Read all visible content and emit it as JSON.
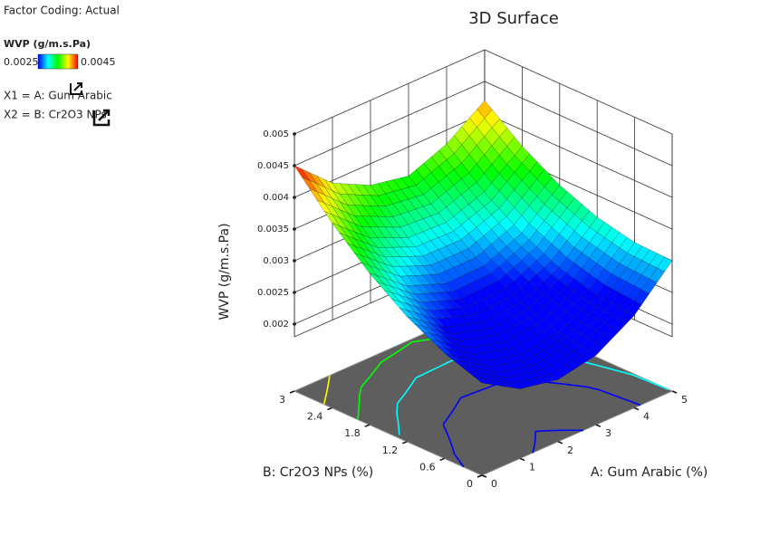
{
  "chart_data": {
    "type": "surface3d",
    "title": "3D Surface",
    "xlabel": "A: Gum Arabic (%)",
    "ylabel": "B: Cr2O3 NPs (%)",
    "zlabel": "WVP  (g/m.s.Pa)",
    "x": [
      0,
      1,
      2,
      3,
      4,
      5
    ],
    "y": [
      0,
      0.6,
      1.2,
      1.8,
      2.4,
      3
    ],
    "z": [
      [
        0.0024,
        0.00204,
        0.00192,
        0.00204,
        0.0024,
        0.003
      ],
      [
        0.002604,
        0.002208,
        0.002052,
        0.002136,
        0.00246,
        0.003024
      ],
      [
        0.002916,
        0.002484,
        0.002292,
        0.00234,
        0.002628,
        0.003156
      ],
      [
        0.003336,
        0.002868,
        0.00264,
        0.002652,
        0.002904,
        0.003396
      ],
      [
        0.003864,
        0.00336,
        0.003096,
        0.003072,
        0.003288,
        0.003744
      ],
      [
        0.0045,
        0.00396,
        0.00366,
        0.00354,
        0.00378,
        0.0042
      ]
    ],
    "xlim": [
      0,
      5
    ],
    "ylim": [
      0,
      3
    ],
    "zlim": [
      0.0018,
      0.005
    ],
    "xticks": [
      0,
      1,
      2,
      3,
      4,
      5
    ],
    "yticks": [
      0,
      0.6,
      1.2,
      1.8,
      2.4,
      3
    ],
    "zticks": [
      0.002,
      0.0025,
      0.003,
      0.0035,
      0.004,
      0.0045,
      0.005
    ],
    "colorbar": {
      "title": "WVP  (g/m.s.Pa)",
      "range": [
        0.0025,
        0.0045
      ]
    },
    "legend": {
      "coding": "Factor Coding: Actual",
      "x1": "X1 = A: Gum Arabic",
      "x2": "X2 = B: Cr2O3 NPs"
    }
  }
}
